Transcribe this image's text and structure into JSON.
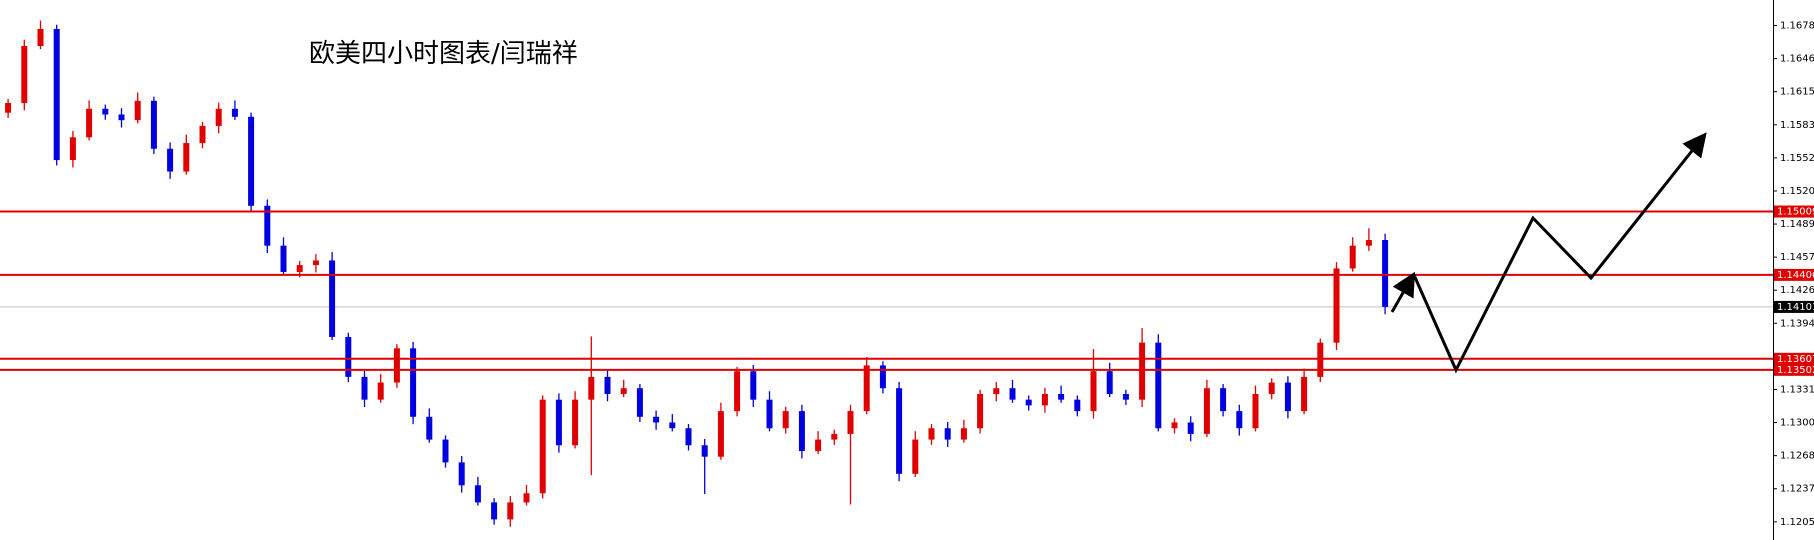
{
  "chart_data": {
    "type": "candlestick",
    "title": "欧美四小时图表/闫瑞祥",
    "up_color": "#e00000",
    "down_color": "#0000e0",
    "level_color": "#e00000",
    "current_color": "#c0c0c0",
    "ylim": [
      1.11882,
      1.17023
    ],
    "yticks": [
      {
        "value": 1.1678,
        "label": "1.16780"
      },
      1.16465,
      {
        "value": 1.1615,
        "label": "1.16150"
      },
      1.15835,
      {
        "value": 1.1552,
        "label": "1.15520"
      },
      1.15205,
      {
        "value": 1.1489,
        "label": "1.14890"
      },
      1.14575,
      {
        "value": 1.1426,
        "label": "1.14260"
      },
      1.13945,
      1.13315,
      {
        "value": 1.13,
        "label": "1.13000"
      },
      1.12685,
      {
        "value": 1.1237,
        "label": "1.12370"
      },
      1.12055
    ],
    "levels": [
      1.15009,
      1.14406,
      1.13607,
      1.13502
    ],
    "current_price": 1.14101,
    "open": [
      1.1595,
      1.16042,
      1.16585,
      1.16747,
      1.15499,
      1.15716,
      1.15987,
      1.15933,
      1.15879,
      1.16063,
      1.15607,
      1.1539,
      1.15661,
      1.15824,
      1.15987,
      1.15911,
      1.15064,
      1.14684,
      1.14434,
      1.14499,
      1.14543,
      1.13815,
      1.13435,
      1.13218,
      1.13381,
      1.13707,
      1.13055,
      1.12838,
      1.12621,
      1.12403,
      1.1224,
      1.12078,
      1.1224,
      1.12327,
      1.13218,
      1.12784,
      1.13218,
      1.13435,
      1.13272,
      1.13327,
      1.13055,
      1.13001,
      1.12946,
      1.12784,
      1.12675,
      1.13109,
      1.13489,
      1.13218,
      1.12946,
      1.13109,
      1.12729,
      1.12838,
      1.12892,
      1.13109,
      1.13544,
      1.13327,
      1.12512,
      1.12838,
      1.12946,
      1.12838,
      1.12946,
      1.13272,
      1.13327,
      1.13218,
      1.13164,
      1.13272,
      1.13218,
      1.13109,
      1.13489,
      1.13272,
      1.13218,
      1.13761,
      1.12946,
      1.13001,
      1.12892,
      1.13327,
      1.13109,
      1.12946,
      1.13272,
      1.13381,
      1.13109,
      1.13435,
      1.13761,
      1.14467,
      1.14684,
      1.14738
    ],
    "high": [
      1.16082,
      1.16645,
      1.16827,
      1.16787,
      1.15776,
      1.16067,
      1.16027,
      1.15993,
      1.16143,
      1.16103,
      1.15667,
      1.15741,
      1.15864,
      1.16047,
      1.16067,
      1.15951,
      1.15124,
      1.14764,
      1.14539,
      1.14603,
      1.14623,
      1.13855,
      1.13495,
      1.13461,
      1.13747,
      1.13767,
      1.13135,
      1.12878,
      1.12681,
      1.12483,
      1.1228,
      1.123,
      1.12407,
      1.13258,
      1.13278,
      1.13298,
      1.1382,
      1.13495,
      1.13407,
      1.13367,
      1.13115,
      1.13081,
      1.12986,
      1.12844,
      1.13189,
      1.13529,
      1.13549,
      1.13298,
      1.13149,
      1.13169,
      1.12918,
      1.12932,
      1.13169,
      1.13624,
      1.13584,
      1.13387,
      1.12918,
      1.12986,
      1.13006,
      1.13026,
      1.13312,
      1.13387,
      1.13407,
      1.13258,
      1.13332,
      1.13352,
      1.13258,
      1.137,
      1.13569,
      1.13312,
      1.139,
      1.13841,
      1.13041,
      1.13061,
      1.13407,
      1.13367,
      1.13169,
      1.13352,
      1.13421,
      1.13441,
      1.13515,
      1.13801,
      1.14527,
      1.14764,
      1.1485,
      1.14798
    ],
    "low": [
      1.159,
      1.15972,
      1.16555,
      1.15449,
      1.15429,
      1.15686,
      1.15883,
      1.15809,
      1.15849,
      1.15557,
      1.1532,
      1.1536,
      1.15611,
      1.15754,
      1.15881,
      1.15014,
      1.14614,
      1.14404,
      1.14384,
      1.14429,
      1.13785,
      1.13385,
      1.13148,
      1.13188,
      1.13331,
      1.12985,
      1.12808,
      1.12571,
      1.12333,
      1.1221,
      1.12028,
      1.12008,
      1.1221,
      1.12277,
      1.12714,
      1.12754,
      1.125,
      1.13202,
      1.13242,
      1.13005,
      1.12931,
      1.12916,
      1.12734,
      1.1232,
      1.12645,
      1.13059,
      1.13148,
      1.12916,
      1.12896,
      1.12659,
      1.12699,
      1.12788,
      1.1222,
      1.13079,
      1.13277,
      1.12442,
      1.12482,
      1.12788,
      1.12768,
      1.12808,
      1.12896,
      1.13202,
      1.13188,
      1.13114,
      1.13094,
      1.13188,
      1.13059,
      1.13039,
      1.13242,
      1.13168,
      1.13148,
      1.12916,
      1.12896,
      1.12822,
      1.12862,
      1.13059,
      1.12876,
      1.12916,
      1.13222,
      1.13039,
      1.13079,
      1.13385,
      1.13691,
      1.14437,
      1.14634,
      1.14031
    ],
    "close": [
      1.16042,
      1.16585,
      1.16747,
      1.15499,
      1.15716,
      1.15987,
      1.15933,
      1.15879,
      1.16063,
      1.15607,
      1.1539,
      1.15661,
      1.15824,
      1.15987,
      1.15911,
      1.15064,
      1.14684,
      1.14434,
      1.14499,
      1.14543,
      1.13815,
      1.13435,
      1.13218,
      1.13381,
      1.13707,
      1.13055,
      1.12838,
      1.12621,
      1.12403,
      1.1224,
      1.12078,
      1.1224,
      1.12327,
      1.13218,
      1.12784,
      1.13218,
      1.13435,
      1.13272,
      1.13327,
      1.13055,
      1.13001,
      1.12946,
      1.12784,
      1.12675,
      1.13109,
      1.13489,
      1.13218,
      1.12946,
      1.13109,
      1.12729,
      1.12838,
      1.12892,
      1.13109,
      1.13544,
      1.13327,
      1.12512,
      1.12838,
      1.12946,
      1.12838,
      1.12946,
      1.13272,
      1.13327,
      1.13218,
      1.13164,
      1.13272,
      1.13218,
      1.13109,
      1.13489,
      1.13272,
      1.13218,
      1.13761,
      1.12946,
      1.13001,
      1.12892,
      1.13327,
      1.13109,
      1.12946,
      1.13272,
      1.13381,
      1.13109,
      1.13435,
      1.13761,
      1.14467,
      1.14684,
      1.14738,
      1.14101
    ]
  }
}
